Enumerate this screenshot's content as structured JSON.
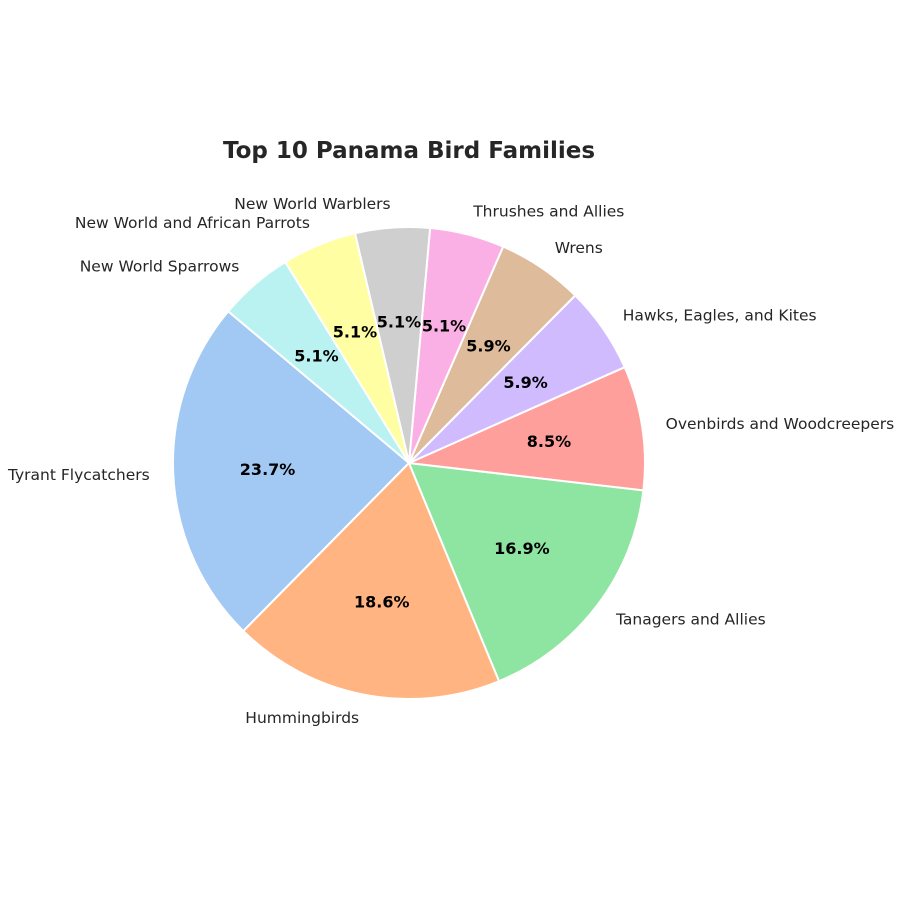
{
  "chart_data": {
    "type": "pie",
    "title": "Top 10 Panama Bird Families",
    "start_angle_deg": 140,
    "direction": "counterclockwise",
    "slices": [
      {
        "label": "Tyrant Flycatchers",
        "value": 23.7,
        "pct_label": "23.7%",
        "color": "#a1c9f4"
      },
      {
        "label": "Hummingbirds",
        "value": 18.6,
        "pct_label": "18.6%",
        "color": "#ffb482"
      },
      {
        "label": "Tanagers and Allies",
        "value": 16.9,
        "pct_label": "16.9%",
        "color": "#8de5a1"
      },
      {
        "label": "Ovenbirds and Woodcreepers",
        "value": 8.5,
        "pct_label": "8.5%",
        "color": "#ff9f9b"
      },
      {
        "label": "Hawks, Eagles, and Kites",
        "value": 5.9,
        "pct_label": "5.9%",
        "color": "#d0bbff"
      },
      {
        "label": "Wrens",
        "value": 5.9,
        "pct_label": "5.9%",
        "color": "#debb9b"
      },
      {
        "label": "Thrushes and Allies",
        "value": 5.1,
        "pct_label": "5.1%",
        "color": "#fab0e4"
      },
      {
        "label": "New World Warblers",
        "value": 5.1,
        "pct_label": "5.1%",
        "color": "#cfcfcf"
      },
      {
        "label": "New World and African Parrots",
        "value": 5.1,
        "pct_label": "5.1%",
        "color": "#fffea3"
      },
      {
        "label": "New World Sparrows",
        "value": 5.1,
        "pct_label": "5.1%",
        "color": "#b9f2f0"
      }
    ]
  }
}
